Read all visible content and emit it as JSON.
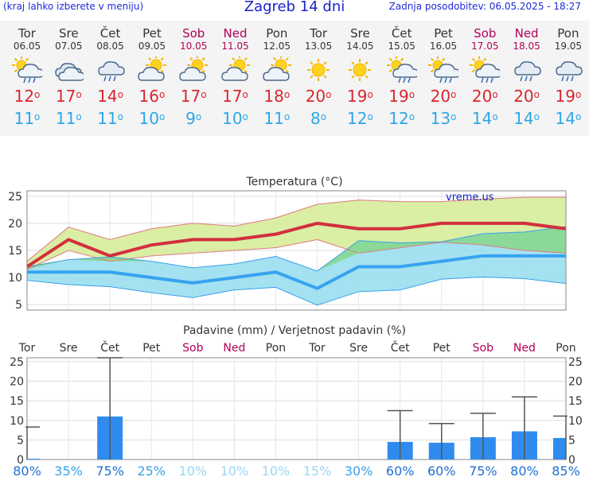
{
  "header": {
    "hint": "(kraj lahko izberete v meniju)",
    "title": "Zagreb 14 dni",
    "updated": "Zadnja posodobitev: 06.05.2025 - 18:27"
  },
  "colors": {
    "max_line": "#d22f3d",
    "min_line": "#37a3f0",
    "max_band": "#d6ec9a",
    "min_band": "#9adff0",
    "overlap_band": "#86d78a",
    "precip_bar": "#2f8cee",
    "weekend_text": "#b0005a"
  },
  "days": [
    {
      "name": "Tor",
      "date": "06.05",
      "weekend": false,
      "icon": "sun-cloud-rain-icon",
      "max": "12",
      "min": "11"
    },
    {
      "name": "Sre",
      "date": "07.05",
      "weekend": false,
      "icon": "cloud-icon",
      "max": "17",
      "min": "11"
    },
    {
      "name": "Čet",
      "date": "08.05",
      "weekend": false,
      "icon": "cloud-rain-icon",
      "max": "14",
      "min": "11"
    },
    {
      "name": "Pet",
      "date": "09.05",
      "weekend": false,
      "icon": "partly-cloudy-icon",
      "max": "16",
      "min": "10"
    },
    {
      "name": "Sob",
      "date": "10.05",
      "weekend": true,
      "icon": "partly-cloudy-icon",
      "max": "17",
      "min": "9"
    },
    {
      "name": "Ned",
      "date": "11.05",
      "weekend": true,
      "icon": "partly-cloudy-icon",
      "max": "17",
      "min": "10"
    },
    {
      "name": "Pon",
      "date": "12.05",
      "weekend": false,
      "icon": "partly-cloudy-icon",
      "max": "18",
      "min": "11"
    },
    {
      "name": "Tor",
      "date": "13.05",
      "weekend": false,
      "icon": "sun-icon",
      "max": "20",
      "min": "8"
    },
    {
      "name": "Sre",
      "date": "14.05",
      "weekend": false,
      "icon": "sun-icon",
      "max": "19",
      "min": "12"
    },
    {
      "name": "Čet",
      "date": "15.05",
      "weekend": false,
      "icon": "sun-cloud-rain-icon",
      "max": "19",
      "min": "12"
    },
    {
      "name": "Pet",
      "date": "16.05",
      "weekend": false,
      "icon": "sun-cloud-rain-icon",
      "max": "20",
      "min": "13"
    },
    {
      "name": "Sob",
      "date": "17.05",
      "weekend": true,
      "icon": "sun-cloud-rain-icon",
      "max": "20",
      "min": "14"
    },
    {
      "name": "Ned",
      "date": "18.05",
      "weekend": true,
      "icon": "cloud-rain-icon",
      "max": "20",
      "min": "14"
    },
    {
      "name": "Pon",
      "date": "19.05",
      "weekend": false,
      "icon": "cloud-rain-icon",
      "max": "19",
      "min": "14"
    }
  ],
  "chart_data": [
    {
      "type": "area",
      "title": "Temperatura (°C)",
      "watermark": "vreme.us",
      "ylim": [
        4,
        26
      ],
      "yticks": [
        5,
        10,
        15,
        20,
        25
      ],
      "grid": true,
      "x": [
        "06.05",
        "07.05",
        "08.05",
        "09.05",
        "10.05",
        "11.05",
        "12.05",
        "13.05",
        "14.05",
        "15.05",
        "16.05",
        "17.05",
        "18.05",
        "19.05"
      ],
      "series": [
        {
          "name": "",
          "role": "max",
          "values": [
            12,
            17,
            14,
            16,
            17,
            17,
            18,
            20,
            19,
            19,
            20,
            20,
            20,
            19
          ]
        },
        {
          "name": "",
          "role": "min",
          "values": [
            11,
            11,
            11,
            10,
            9,
            10,
            11,
            8,
            12,
            12,
            13,
            14,
            14,
            14
          ]
        }
      ],
      "bands": [
        {
          "role": "max-range",
          "low": [
            11.5,
            15,
            13,
            14,
            14.5,
            15,
            15.5,
            17,
            14.5,
            15.5,
            16.5,
            16,
            15,
            14.5
          ],
          "high": [
            13,
            19.3,
            17,
            19,
            20,
            19.5,
            21,
            23.5,
            24.3,
            24,
            24,
            24.5,
            24.8,
            24.8
          ]
        },
        {
          "role": "min-range",
          "low": [
            9.5,
            8.7,
            8.3,
            7.2,
            6.3,
            7.7,
            8.2,
            4.9,
            7.4,
            7.7,
            9.7,
            10.1,
            9.8,
            8.9
          ],
          "high": [
            12,
            13.3,
            13.8,
            13,
            11.8,
            12.5,
            13.9,
            11.2,
            16.8,
            16.4,
            16.6,
            18.1,
            18.4,
            19.4
          ]
        }
      ]
    },
    {
      "type": "bar",
      "title": "Padavine (mm) / Verjetnost padavin (%)",
      "ylim": [
        0,
        26
      ],
      "yticks": [
        0,
        5,
        10,
        15,
        20,
        25
      ],
      "grid": true,
      "categories": [
        "Tor",
        "Sre",
        "Čet",
        "Pet",
        "Sob",
        "Ned",
        "Pon",
        "Tor",
        "Sre",
        "Čet",
        "Pet",
        "Sob",
        "Ned",
        "Pon"
      ],
      "weekend": [
        false,
        false,
        false,
        false,
        true,
        true,
        false,
        false,
        false,
        false,
        false,
        true,
        true,
        false
      ],
      "values": [
        0.2,
        0,
        11,
        0,
        0,
        0,
        0,
        0,
        0,
        4.5,
        4.3,
        5.7,
        7.2,
        5.5
      ],
      "error_max": [
        8.3,
        0,
        26,
        0,
        0,
        0,
        0,
        0,
        0,
        12.5,
        9.2,
        11.8,
        16,
        11.1
      ],
      "probabilities": [
        "80%",
        "35%",
        "75%",
        "25%",
        "10%",
        "10%",
        "10%",
        "15%",
        "30%",
        "60%",
        "60%",
        "75%",
        "80%",
        "85%"
      ]
    }
  ]
}
